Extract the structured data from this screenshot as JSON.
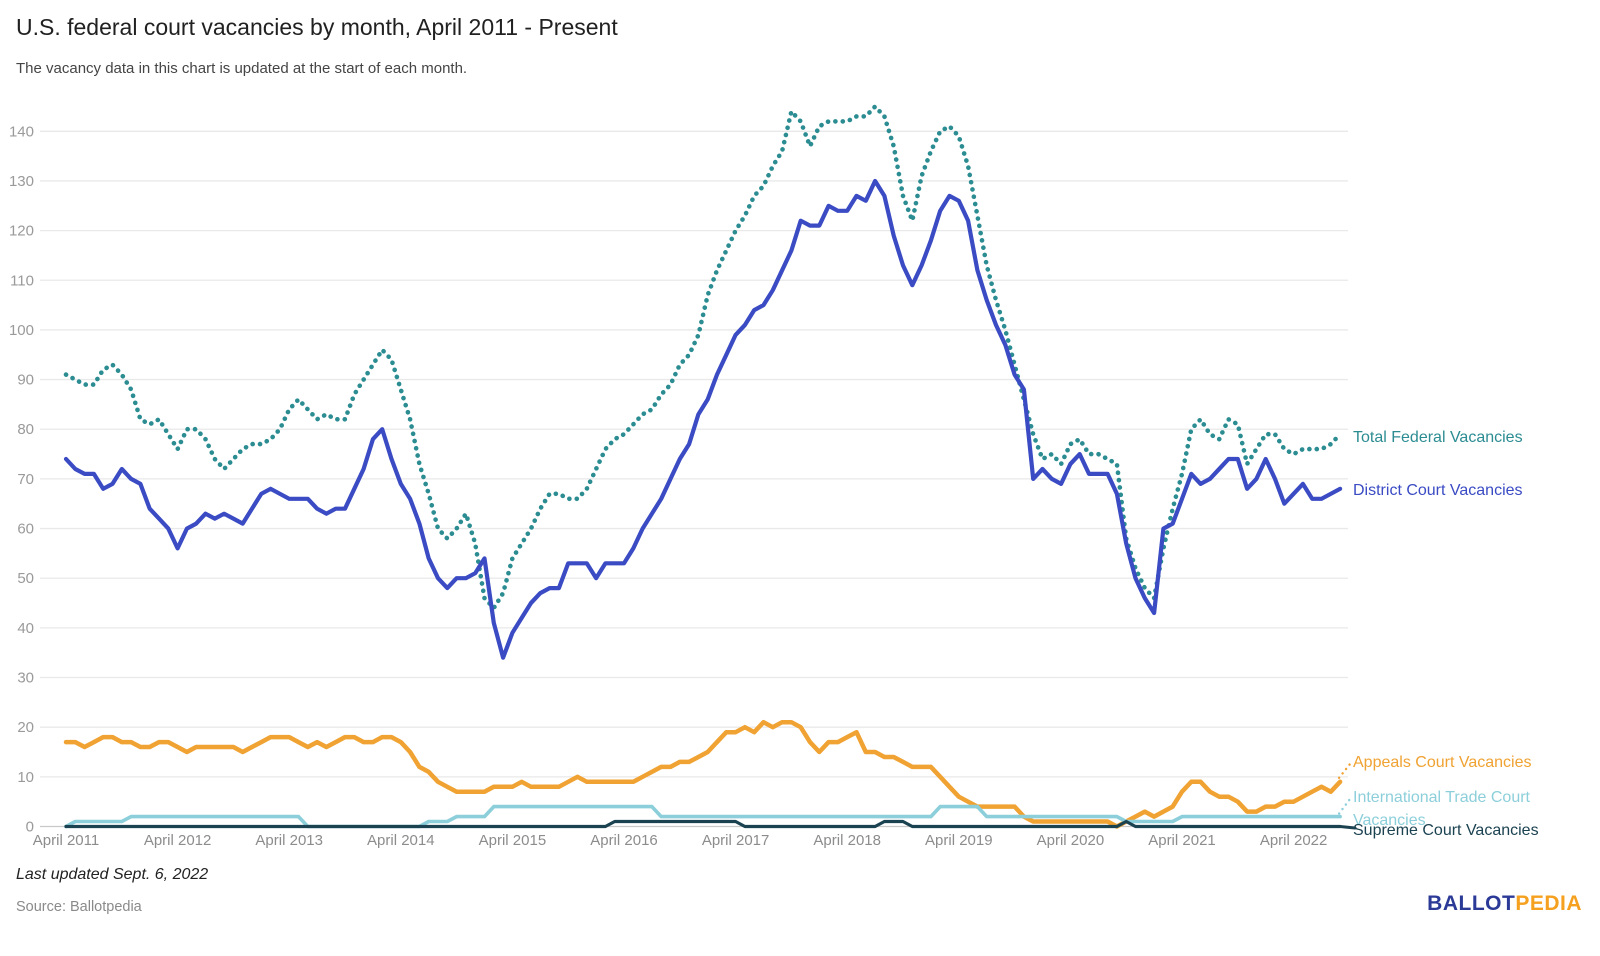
{
  "header": {
    "title": "U.S. federal court vacancies by month, April 2011 - Present",
    "subtitle": "The vacancy data in this chart is updated at the start of each month."
  },
  "footer": {
    "last_updated": "Last updated Sept. 6, 2022",
    "source": "Source: Ballotpedia",
    "logo": {
      "part1": "BALLOT",
      "part2": "PEDIA",
      "part1_color": "#2B3A97",
      "part2_color": "#F5A01E"
    }
  },
  "colors": {
    "grid": "#e9e9e9",
    "zero_axis": "#c9c9c9",
    "y_tick_text": "#9a9a9a",
    "x_tick_text": "#8c8c8c"
  },
  "chart_data": {
    "type": "line",
    "title": "U.S. federal court vacancies by month, April 2011 - Present",
    "x_unit": "month",
    "x_start_label": "April 2011",
    "x_end_label": "September 2022",
    "x_tick_labels": [
      "April 2011",
      "April 2012",
      "April 2013",
      "April 2014",
      "April 2015",
      "April 2016",
      "April 2017",
      "April 2018",
      "April 2019",
      "April 2020",
      "April 2021",
      "April 2022"
    ],
    "y_ticks": [
      0,
      10,
      20,
      30,
      40,
      50,
      60,
      70,
      80,
      90,
      100,
      110,
      120,
      130,
      140
    ],
    "ylim": [
      0,
      145
    ],
    "grid": "horizontal",
    "legend_position": "right-edge-labels",
    "series": [
      {
        "name": "Total Federal Vacancies",
        "label_lines": [
          "Total Federal Vacancies"
        ],
        "color": "#2B8C92",
        "line_style": "dotted",
        "values": [
          91,
          90,
          89,
          89,
          92,
          93,
          91,
          88,
          82,
          81,
          82,
          79,
          76,
          80,
          80,
          78,
          74,
          72,
          74,
          76,
          77,
          77,
          78,
          80,
          84,
          86,
          84,
          82,
          83,
          82,
          82,
          87,
          90,
          93,
          96,
          94,
          88,
          82,
          73,
          67,
          60,
          58,
          60,
          63,
          57,
          46,
          44,
          47,
          54,
          57,
          60,
          64,
          67,
          67,
          66,
          66,
          68,
          72,
          76,
          78,
          79,
          81,
          83,
          84,
          87,
          89,
          93,
          95,
          99,
          107,
          112,
          116,
          120,
          123,
          127,
          129,
          133,
          136,
          144,
          142,
          137,
          141,
          142,
          142,
          142,
          143,
          143,
          145,
          143,
          137,
          127,
          122,
          131,
          136,
          140,
          141,
          139,
          133,
          123,
          113,
          106,
          100,
          93,
          86,
          79,
          74,
          75,
          73,
          77,
          78,
          75,
          75,
          74,
          73,
          58,
          52,
          48,
          46,
          56,
          64,
          71,
          80,
          82,
          79,
          78,
          82,
          81,
          73,
          76,
          79,
          79,
          76,
          75,
          76,
          76,
          76,
          77,
          79
        ]
      },
      {
        "name": "District Court Vacancies",
        "label_lines": [
          "District Court Vacancies"
        ],
        "color": "#3A4BC4",
        "line_style": "solid",
        "values": [
          74,
          72,
          71,
          71,
          68,
          69,
          72,
          70,
          69,
          64,
          62,
          60,
          56,
          60,
          61,
          63,
          62,
          63,
          62,
          61,
          64,
          67,
          68,
          67,
          66,
          66,
          66,
          64,
          63,
          64,
          64,
          68,
          72,
          78,
          80,
          74,
          69,
          66,
          61,
          54,
          50,
          48,
          50,
          50,
          51,
          54,
          41,
          34,
          39,
          42,
          45,
          47,
          48,
          48,
          53,
          53,
          53,
          50,
          53,
          53,
          53,
          56,
          60,
          63,
          66,
          70,
          74,
          77,
          83,
          86,
          91,
          95,
          99,
          101,
          104,
          105,
          108,
          112,
          116,
          122,
          121,
          121,
          125,
          124,
          124,
          127,
          126,
          130,
          127,
          119,
          113,
          109,
          113,
          118,
          124,
          127,
          126,
          122,
          112,
          106,
          101,
          97,
          91,
          88,
          70,
          72,
          70,
          69,
          73,
          75,
          71,
          71,
          71,
          67,
          57,
          50,
          46,
          43,
          60,
          61,
          66,
          71,
          69,
          70,
          72,
          74,
          74,
          68,
          70,
          74,
          70,
          65,
          67,
          69,
          66,
          66,
          67,
          68
        ]
      },
      {
        "name": "Appeals Court Vacancies",
        "label_lines": [
          "Appeals Court Vacancies"
        ],
        "color": "#F0A232",
        "line_style": "solid",
        "values": [
          17,
          17,
          16,
          17,
          18,
          18,
          17,
          17,
          16,
          16,
          17,
          17,
          16,
          15,
          16,
          16,
          16,
          16,
          16,
          15,
          16,
          17,
          18,
          18,
          18,
          17,
          16,
          17,
          16,
          17,
          18,
          18,
          17,
          17,
          18,
          18,
          17,
          15,
          12,
          11,
          9,
          8,
          7,
          7,
          7,
          7,
          8,
          8,
          8,
          9,
          8,
          8,
          8,
          8,
          9,
          10,
          9,
          9,
          9,
          9,
          9,
          9,
          10,
          11,
          12,
          12,
          13,
          13,
          14,
          15,
          17,
          19,
          19,
          20,
          19,
          21,
          20,
          21,
          21,
          20,
          17,
          15,
          17,
          17,
          18,
          19,
          15,
          15,
          14,
          14,
          13,
          12,
          12,
          12,
          10,
          8,
          6,
          5,
          4,
          4,
          4,
          4,
          4,
          2,
          1,
          1,
          1,
          1,
          1,
          1,
          1,
          1,
          1,
          0,
          1,
          2,
          3,
          2,
          3,
          4,
          7,
          9,
          9,
          7,
          6,
          6,
          5,
          3,
          3,
          4,
          4,
          5,
          5,
          6,
          7,
          8,
          7,
          9
        ]
      },
      {
        "name": "International Trade Court Vacancies",
        "label_lines": [
          "International Trade Court",
          "Vacancies"
        ],
        "color": "#8CCFDB",
        "line_style": "solid",
        "values": [
          0,
          1,
          1,
          1,
          1,
          1,
          1,
          2,
          2,
          2,
          2,
          2,
          2,
          2,
          2,
          2,
          2,
          2,
          2,
          2,
          2,
          2,
          2,
          2,
          2,
          2,
          0,
          0,
          0,
          0,
          0,
          0,
          0,
          0,
          0,
          0,
          0,
          0,
          0,
          1,
          1,
          1,
          2,
          2,
          2,
          2,
          4,
          4,
          4,
          4,
          4,
          4,
          4,
          4,
          4,
          4,
          4,
          4,
          4,
          4,
          4,
          4,
          4,
          4,
          2,
          2,
          2,
          2,
          2,
          2,
          2,
          2,
          2,
          2,
          2,
          2,
          2,
          2,
          2,
          2,
          2,
          2,
          2,
          2,
          2,
          2,
          2,
          2,
          2,
          2,
          2,
          2,
          2,
          2,
          4,
          4,
          4,
          4,
          4,
          2,
          2,
          2,
          2,
          2,
          2,
          2,
          2,
          2,
          2,
          2,
          2,
          2,
          2,
          2,
          1,
          1,
          1,
          1,
          1,
          1,
          2,
          2,
          2,
          2,
          2,
          2,
          2,
          2,
          2,
          2,
          2,
          2,
          2,
          2,
          2,
          2,
          2,
          2
        ]
      },
      {
        "name": "Supreme Court Vacancies",
        "label_lines": [
          "Supreme Court Vacancies"
        ],
        "color": "#1B4251",
        "line_style": "solid",
        "values": [
          0,
          0,
          0,
          0,
          0,
          0,
          0,
          0,
          0,
          0,
          0,
          0,
          0,
          0,
          0,
          0,
          0,
          0,
          0,
          0,
          0,
          0,
          0,
          0,
          0,
          0,
          0,
          0,
          0,
          0,
          0,
          0,
          0,
          0,
          0,
          0,
          0,
          0,
          0,
          0,
          0,
          0,
          0,
          0,
          0,
          0,
          0,
          0,
          0,
          0,
          0,
          0,
          0,
          0,
          0,
          0,
          0,
          0,
          0,
          1,
          1,
          1,
          1,
          1,
          1,
          1,
          1,
          1,
          1,
          1,
          1,
          1,
          1,
          0,
          0,
          0,
          0,
          0,
          0,
          0,
          0,
          0,
          0,
          0,
          0,
          0,
          0,
          0,
          1,
          1,
          1,
          0,
          0,
          0,
          0,
          0,
          0,
          0,
          0,
          0,
          0,
          0,
          0,
          0,
          0,
          0,
          0,
          0,
          0,
          0,
          0,
          0,
          0,
          0,
          1,
          0,
          0,
          0,
          0,
          0,
          0,
          0,
          0,
          0,
          0,
          0,
          0,
          0,
          0,
          0,
          0,
          0,
          0,
          0,
          0,
          0,
          0,
          0
        ]
      }
    ]
  }
}
